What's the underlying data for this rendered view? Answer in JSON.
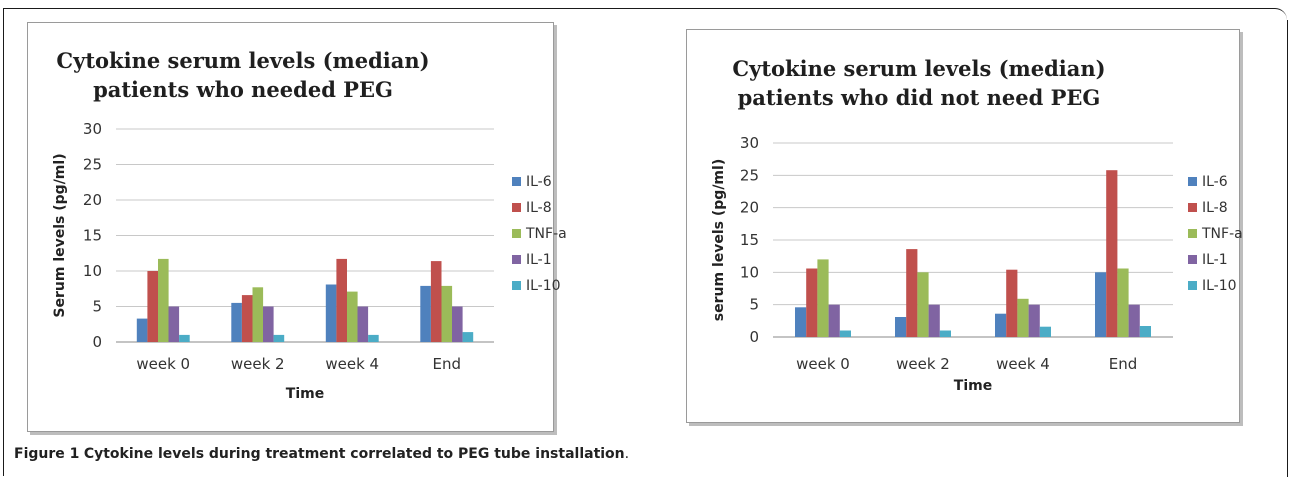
{
  "caption": {
    "label": "Figure 1",
    "text": "Cytokine levels during treatment correlated to PEG tube installation",
    "end": "."
  },
  "colors": {
    "IL-6": "#4f81bd",
    "IL-8": "#c0504d",
    "TNF-a": "#9bbb59",
    "IL-1": "#8064a2",
    "IL-10": "#4bacc6",
    "grid": "#c8c8c8"
  },
  "chart_data": [
    {
      "type": "bar",
      "title_line1": "Cytokine serum levels (median)",
      "title_line2": "patients who needed PEG",
      "xlabel": "Time",
      "ylabel": "Serum levels (pg/ml)",
      "categories": [
        "week 0",
        "week 2",
        "week 4",
        "End"
      ],
      "ylim": [
        0,
        30
      ],
      "yticks": [
        0,
        5,
        10,
        15,
        20,
        25,
        30
      ],
      "grid": true,
      "legend_position": "right",
      "series": [
        {
          "name": "IL-6",
          "values": [
            3.3,
            5.5,
            8.1,
            7.9
          ]
        },
        {
          "name": "IL-8",
          "values": [
            10.0,
            6.6,
            11.7,
            11.4
          ]
        },
        {
          "name": "TNF-a",
          "values": [
            11.7,
            7.7,
            7.1,
            7.9
          ]
        },
        {
          "name": "IL-1",
          "values": [
            5.0,
            5.0,
            5.0,
            5.0
          ]
        },
        {
          "name": "IL-10",
          "values": [
            1.0,
            1.0,
            1.0,
            1.4
          ]
        }
      ]
    },
    {
      "type": "bar",
      "title_line1": "Cytokine serum levels (median)",
      "title_line2": "patients who did not need PEG",
      "xlabel": "Time",
      "ylabel": "serum levels (pg/ml)",
      "categories": [
        "week 0",
        "week 2",
        "week 4",
        "End"
      ],
      "ylim": [
        0,
        30
      ],
      "yticks": [
        0,
        5,
        10,
        15,
        20,
        25,
        30
      ],
      "grid": true,
      "legend_position": "right",
      "series": [
        {
          "name": "IL-6",
          "values": [
            4.6,
            3.1,
            3.6,
            10.0
          ]
        },
        {
          "name": "IL-8",
          "values": [
            10.6,
            13.6,
            10.4,
            25.8
          ]
        },
        {
          "name": "TNF-a",
          "values": [
            12.0,
            10.0,
            5.9,
            10.6
          ]
        },
        {
          "name": "IL-1",
          "values": [
            5.0,
            5.0,
            5.0,
            5.0
          ]
        },
        {
          "name": "IL-10",
          "values": [
            1.0,
            1.0,
            1.6,
            1.7
          ]
        }
      ]
    }
  ]
}
